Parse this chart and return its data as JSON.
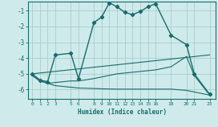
{
  "xlabel": "Humidex (Indice chaleur)",
  "bg_color": "#ceeaea",
  "grid_color": "#aacece",
  "line_color": "#1a6b6b",
  "xlim": [
    -0.5,
    23.8
  ],
  "ylim": [
    -6.6,
    -0.4
  ],
  "xticks": [
    0,
    1,
    2,
    3,
    5,
    6,
    8,
    9,
    10,
    11,
    12,
    13,
    14,
    15,
    16,
    18,
    20,
    21,
    23
  ],
  "yticks": [
    -1,
    -2,
    -3,
    -4,
    -5,
    -6
  ],
  "lines": [
    {
      "x": [
        0,
        1,
        2,
        3,
        5,
        6,
        8,
        9,
        10,
        11,
        12,
        13,
        14,
        15,
        16,
        18,
        20,
        21,
        23
      ],
      "y": [
        -5.0,
        -5.4,
        -5.5,
        -3.8,
        -3.7,
        -5.3,
        -1.75,
        -1.4,
        -0.5,
        -0.75,
        -1.1,
        -1.25,
        -1.05,
        -0.75,
        -0.55,
        -2.55,
        -3.15,
        -5.0,
        -6.3
      ],
      "marker": true,
      "lw": 1.0
    },
    {
      "x": [
        0,
        23
      ],
      "y": [
        -5.0,
        -3.8
      ],
      "marker": false,
      "lw": 0.8
    },
    {
      "x": [
        0,
        1,
        2,
        3,
        5,
        6,
        8,
        9,
        10,
        11,
        12,
        13,
        14,
        15,
        16,
        18,
        20,
        21,
        23
      ],
      "y": [
        -5.1,
        -5.45,
        -5.6,
        -5.55,
        -5.45,
        -5.45,
        -5.3,
        -5.2,
        -5.1,
        -5.0,
        -4.95,
        -4.9,
        -4.85,
        -4.8,
        -4.75,
        -4.55,
        -3.9,
        -5.1,
        -6.35
      ],
      "marker": false,
      "lw": 0.8
    },
    {
      "x": [
        0,
        1,
        2,
        3,
        5,
        6,
        8,
        9,
        10,
        11,
        12,
        13,
        14,
        15,
        16,
        18,
        20,
        21,
        23
      ],
      "y": [
        -5.1,
        -5.45,
        -5.6,
        -5.75,
        -5.85,
        -5.9,
        -5.93,
        -5.95,
        -5.96,
        -5.97,
        -5.97,
        -5.97,
        -5.97,
        -5.97,
        -5.97,
        -5.97,
        -6.05,
        -6.15,
        -6.35
      ],
      "marker": false,
      "lw": 0.8
    }
  ]
}
